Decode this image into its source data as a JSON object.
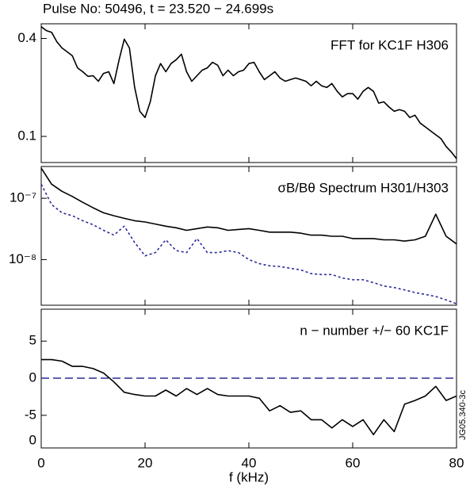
{
  "title": "Pulse No: 50496, t = 23.520 − 24.699s",
  "side_code": "JG05.340-3c",
  "chart_data": [
    {
      "type": "line",
      "annotation": "FFT for KC1F H306",
      "x": [
        0,
        1,
        2,
        3,
        4,
        5,
        6,
        7,
        8,
        9,
        10,
        11,
        12,
        13,
        14,
        15,
        16,
        17,
        18,
        19,
        20,
        21,
        22,
        23,
        24,
        25,
        26,
        27,
        28,
        29,
        30,
        31,
        32,
        33,
        34,
        35,
        36,
        37,
        38,
        39,
        40,
        41,
        42,
        43,
        44,
        45,
        46,
        47,
        48,
        49,
        50,
        51,
        52,
        53,
        54,
        55,
        56,
        57,
        58,
        59,
        60,
        61,
        62,
        63,
        64,
        65,
        66,
        67,
        68,
        69,
        70,
        71,
        72,
        73,
        74,
        75,
        76,
        77,
        78,
        79,
        80
      ],
      "series": [
        {
          "color": "#000000",
          "dash": false,
          "values": [
            0.436,
            0.424,
            0.419,
            0.39,
            0.371,
            0.359,
            0.347,
            0.31,
            0.298,
            0.284,
            0.286,
            0.269,
            0.293,
            0.298,
            0.262,
            0.335,
            0.398,
            0.371,
            0.25,
            0.177,
            0.158,
            0.206,
            0.286,
            0.323,
            0.298,
            0.323,
            0.335,
            0.352,
            0.298,
            0.269,
            0.286,
            0.303,
            0.31,
            0.327,
            0.318,
            0.286,
            0.303,
            0.286,
            0.298,
            0.303,
            0.323,
            0.327,
            0.298,
            0.274,
            0.286,
            0.298,
            0.279,
            0.269,
            0.274,
            0.279,
            0.274,
            0.269,
            0.255,
            0.269,
            0.255,
            0.25,
            0.262,
            0.238,
            0.221,
            0.231,
            0.231,
            0.214,
            0.238,
            0.25,
            0.238,
            0.202,
            0.206,
            0.19,
            0.177,
            0.182,
            0.177,
            0.158,
            0.165,
            0.141,
            0.129,
            0.117,
            0.105,
            0.093,
            0.069,
            0.052,
            0.032
          ]
        }
      ],
      "xlim": [
        0,
        80
      ],
      "xticks": [
        0,
        20,
        40,
        60,
        80
      ],
      "ylim": [
        0.02,
        0.445
      ],
      "yticks": [
        0.4,
        0.1
      ],
      "log": false
    },
    {
      "type": "line",
      "annotation": "σB/Bθ Spectrum H301/H303",
      "x": [
        0,
        2,
        4,
        6,
        8,
        10,
        12,
        14,
        16,
        18,
        20,
        22,
        24,
        26,
        28,
        30,
        32,
        34,
        36,
        38,
        40,
        42,
        44,
        46,
        48,
        50,
        52,
        54,
        56,
        58,
        60,
        62,
        64,
        66,
        68,
        70,
        72,
        74,
        76,
        78,
        80
      ],
      "series": [
        {
          "color": "#000000",
          "dash": false,
          "values": [
            3.1e-07,
            1.7e-07,
            1.3e-07,
            1.07e-07,
            8.6e-08,
            7e-08,
            5.8e-08,
            5.2e-08,
            4.7e-08,
            4.3e-08,
            4.1e-08,
            3.8e-08,
            3.5e-08,
            3.3e-08,
            3e-08,
            3.2e-08,
            3.4e-08,
            3.3e-08,
            3e-08,
            3.1e-08,
            3.2e-08,
            3e-08,
            2.8e-08,
            2.8e-08,
            2.8e-08,
            2.7e-08,
            2.5e-08,
            2.5e-08,
            2.4e-08,
            2.4e-08,
            2.2e-08,
            2.2e-08,
            2.2e-08,
            2.1e-08,
            2.1e-08,
            2e-08,
            2.1e-08,
            2.4e-08,
            5.5e-08,
            2.4e-08,
            1.8e-08
          ]
        },
        {
          "color": "#2b2b9a",
          "dash": true,
          "values": [
            1.7e-07,
            7.9e-08,
            5.8e-08,
            5.2e-08,
            4.3e-08,
            3.7e-08,
            3e-08,
            2.5e-08,
            3.5e-08,
            1.9e-08,
            1.15e-08,
            1.3e-08,
            2.1e-08,
            1.4e-08,
            1.3e-08,
            2.2e-08,
            1.3e-08,
            1.3e-08,
            1.4e-08,
            1.3e-08,
            1e-08,
            8.6e-09,
            7.9e-09,
            7.7e-09,
            7.2e-09,
            6.8e-09,
            5.9e-09,
            5.7e-09,
            5.7e-09,
            5e-09,
            4.7e-09,
            4.7e-09,
            4.2e-09,
            3.7e-09,
            3.5e-09,
            3.2e-09,
            2.9e-09,
            2.7e-09,
            2.5e-09,
            2.2e-09,
            1.9e-09
          ]
        }
      ],
      "xlim": [
        0,
        80
      ],
      "xticks": [
        0,
        20,
        40,
        60,
        80
      ],
      "ylim": [
        1.8e-09,
        3.3e-07
      ],
      "yticks": [
        {
          "value": 1e-07,
          "label": "10⁻⁷"
        },
        {
          "value": 1e-08,
          "label": "10⁻⁸"
        }
      ],
      "log": true
    },
    {
      "type": "line",
      "annotation": "n − number +/−  60 KC1F",
      "xlabel": "f (kHz)",
      "extra_label": "0",
      "x": [
        0,
        2,
        4,
        6,
        8,
        10,
        12,
        14,
        16,
        18,
        20,
        22,
        24,
        26,
        28,
        30,
        32,
        34,
        36,
        38,
        40,
        42,
        44,
        46,
        48,
        50,
        52,
        54,
        56,
        58,
        60,
        62,
        64,
        66,
        68,
        70,
        72,
        74,
        76,
        78,
        80
      ],
      "series": [
        {
          "color": "#000000",
          "dash": false,
          "values": [
            2.5,
            2.5,
            2.3,
            1.6,
            1.6,
            1.3,
            0.7,
            -0.5,
            -1.9,
            -2.2,
            -2.4,
            -2.4,
            -1.6,
            -2.4,
            -1.4,
            -2.2,
            -1.4,
            -2.2,
            -2.4,
            -2.4,
            -2.4,
            -2.7,
            -4.4,
            -3.7,
            -4.6,
            -4.4,
            -5.6,
            -5.6,
            -6.7,
            -5.6,
            -6.5,
            -5.6,
            -7.6,
            -5.6,
            -7.2,
            -3.5,
            -3.0,
            -2.4,
            -1.1,
            -3.0,
            -2.4
          ]
        }
      ],
      "hline": 0,
      "hline_color": "#2b2b9a",
      "xlim": [
        0,
        80
      ],
      "xticks": [
        0,
        20,
        40,
        60,
        80
      ],
      "ylim": [
        -9.4,
        9.3
      ],
      "yticks": [
        5,
        0,
        -5
      ],
      "log": false
    }
  ]
}
